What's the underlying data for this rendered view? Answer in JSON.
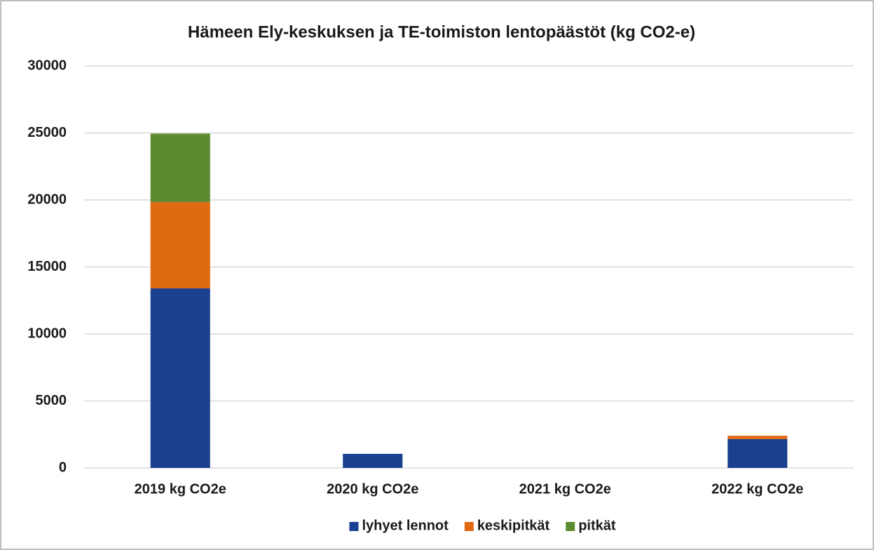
{
  "chart_data": {
    "type": "stacked_bar",
    "title": "Hämeen Ely-keskuksen ja TE-toimiston lentopäästöt (kg CO2-e)",
    "categories": [
      "2019 kg CO2e",
      "2020 kg CO2e",
      "2021 kg CO2e",
      "2022 kg CO2e"
    ],
    "series": [
      {
        "name": "lyhyet lennot",
        "color": "#1a408f",
        "values": [
          13400,
          1050,
          0,
          2150
        ]
      },
      {
        "name": "keskipitkät",
        "color": "#e06a12",
        "values": [
          6450,
          0,
          0,
          250
        ]
      },
      {
        "name": "pitkät",
        "color": "#5b8a2f",
        "values": [
          5100,
          0,
          0,
          0
        ]
      }
    ],
    "ylim": [
      0,
      30000
    ],
    "yticks": [
      0,
      5000,
      10000,
      15000,
      20000,
      25000,
      30000
    ],
    "grid": true,
    "legend": "bottom"
  }
}
